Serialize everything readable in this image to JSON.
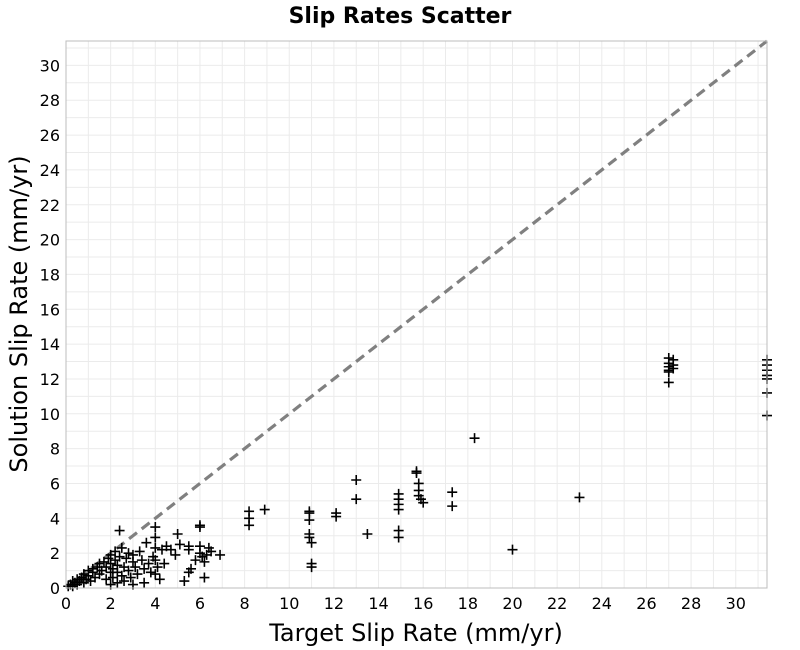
{
  "chart_data": {
    "type": "scatter",
    "title": "Slip Rates Scatter",
    "xlabel": "Target Slip Rate (mm/yr)",
    "ylabel": "Solution Slip Rate (mm/yr)",
    "xlim": [
      0,
      31.4
    ],
    "ylim": [
      0,
      31.4
    ],
    "xticks": [
      0,
      2,
      4,
      6,
      8,
      10,
      12,
      14,
      16,
      18,
      20,
      22,
      24,
      26,
      28,
      30
    ],
    "yticks": [
      0,
      2,
      4,
      6,
      8,
      10,
      12,
      14,
      16,
      18,
      20,
      22,
      24,
      26,
      28,
      30
    ],
    "grid": true,
    "marker": "plus",
    "marker_color": "#000000",
    "reference_line": {
      "style": "dashed",
      "color": "#808080",
      "from": [
        0,
        0
      ],
      "to": [
        31.4,
        31.4
      ]
    },
    "points": [
      [
        0.1,
        0.1
      ],
      [
        0.2,
        0.2
      ],
      [
        0.3,
        0.1
      ],
      [
        0.3,
        0.4
      ],
      [
        0.4,
        0.3
      ],
      [
        0.5,
        0.2
      ],
      [
        0.5,
        0.5
      ],
      [
        0.6,
        0.4
      ],
      [
        0.7,
        0.6
      ],
      [
        0.8,
        0.3
      ],
      [
        0.8,
        0.8
      ],
      [
        0.9,
        0.5
      ],
      [
        1.0,
        1.0
      ],
      [
        1.0,
        0.7
      ],
      [
        1.1,
        0.4
      ],
      [
        1.2,
        0.9
      ],
      [
        1.2,
        1.1
      ],
      [
        1.3,
        0.6
      ],
      [
        1.4,
        1.2
      ],
      [
        1.5,
        0.8
      ],
      [
        1.5,
        1.4
      ],
      [
        1.6,
        1.0
      ],
      [
        1.7,
        1.5
      ],
      [
        1.8,
        0.5
      ],
      [
        1.8,
        1.2
      ],
      [
        1.9,
        1.7
      ],
      [
        2.0,
        0.2
      ],
      [
        2.0,
        0.9
      ],
      [
        2.0,
        1.4
      ],
      [
        2.0,
        1.9
      ],
      [
        2.1,
        0.6
      ],
      [
        2.1,
        1.1
      ],
      [
        2.2,
        1.6
      ],
      [
        2.2,
        2.1
      ],
      [
        2.3,
        0.3
      ],
      [
        2.3,
        0.9
      ],
      [
        2.3,
        1.3
      ],
      [
        2.4,
        3.3
      ],
      [
        2.4,
        1.8
      ],
      [
        2.5,
        0.7
      ],
      [
        2.5,
        2.3
      ],
      [
        2.6,
        1.2
      ],
      [
        2.6,
        0.4
      ],
      [
        2.7,
        1.7
      ],
      [
        2.8,
        1.0
      ],
      [
        2.8,
        2.0
      ],
      [
        2.9,
        0.6
      ],
      [
        3.0,
        1.5
      ],
      [
        3.0,
        0.2
      ],
      [
        3.0,
        1.9
      ],
      [
        3.1,
        1.2
      ],
      [
        3.2,
        0.8
      ],
      [
        3.3,
        2.1
      ],
      [
        3.4,
        1.6
      ],
      [
        3.5,
        0.3
      ],
      [
        3.5,
        1.1
      ],
      [
        3.6,
        2.6
      ],
      [
        3.7,
        1.4
      ],
      [
        3.8,
        0.9
      ],
      [
        3.9,
        1.8
      ],
      [
        4.0,
        3.5
      ],
      [
        4.0,
        2.9
      ],
      [
        4.0,
        2.3
      ],
      [
        4.0,
        1.6
      ],
      [
        4.0,
        0.8
      ],
      [
        4.1,
        1.2
      ],
      [
        4.2,
        0.5
      ],
      [
        4.3,
        2.2
      ],
      [
        4.4,
        1.4
      ],
      [
        4.5,
        2.4
      ],
      [
        4.7,
        2.2
      ],
      [
        4.9,
        1.9
      ],
      [
        5.0,
        3.1
      ],
      [
        5.1,
        2.5
      ],
      [
        5.3,
        0.4
      ],
      [
        5.5,
        2.4
      ],
      [
        5.5,
        2.2
      ],
      [
        5.5,
        0.9
      ],
      [
        5.6,
        1.1
      ],
      [
        5.8,
        1.6
      ],
      [
        6.0,
        3.6
      ],
      [
        6.0,
        3.5
      ],
      [
        6.0,
        2.4
      ],
      [
        6.0,
        2.0
      ],
      [
        6.1,
        1.8
      ],
      [
        6.2,
        1.5
      ],
      [
        6.2,
        0.6
      ],
      [
        6.3,
        1.9
      ],
      [
        6.4,
        2.3
      ],
      [
        6.5,
        2.1
      ],
      [
        6.9,
        1.9
      ],
      [
        8.2,
        4.4
      ],
      [
        8.2,
        4.0
      ],
      [
        8.2,
        3.6
      ],
      [
        8.9,
        4.5
      ],
      [
        10.9,
        4.4
      ],
      [
        10.9,
        4.3
      ],
      [
        10.9,
        3.9
      ],
      [
        10.9,
        3.1
      ],
      [
        10.9,
        2.9
      ],
      [
        11.0,
        2.6
      ],
      [
        11.0,
        1.4
      ],
      [
        11.0,
        1.2
      ],
      [
        12.1,
        4.3
      ],
      [
        12.1,
        4.1
      ],
      [
        13.0,
        6.2
      ],
      [
        13.0,
        5.1
      ],
      [
        13.5,
        3.1
      ],
      [
        14.9,
        5.4
      ],
      [
        14.9,
        5.1
      ],
      [
        14.9,
        4.8
      ],
      [
        14.9,
        4.5
      ],
      [
        14.9,
        3.3
      ],
      [
        14.9,
        2.9
      ],
      [
        15.7,
        6.7
      ],
      [
        15.7,
        6.6
      ],
      [
        15.8,
        6.0
      ],
      [
        15.8,
        5.6
      ],
      [
        15.8,
        5.3
      ],
      [
        15.9,
        5.1
      ],
      [
        16.0,
        4.9
      ],
      [
        17.3,
        5.5
      ],
      [
        17.3,
        4.7
      ],
      [
        18.3,
        8.6
      ],
      [
        20.0,
        2.2
      ],
      [
        23.0,
        5.2
      ],
      [
        27.0,
        13.2
      ],
      [
        27.0,
        12.9
      ],
      [
        27.0,
        12.7
      ],
      [
        27.0,
        12.5
      ],
      [
        27.0,
        12.4
      ],
      [
        27.0,
        11.8
      ],
      [
        27.2,
        13.1
      ],
      [
        27.2,
        12.8
      ],
      [
        27.2,
        12.6
      ],
      [
        31.4,
        13.1
      ],
      [
        31.4,
        12.8
      ],
      [
        31.4,
        12.5
      ],
      [
        31.4,
        12.2
      ],
      [
        31.4,
        12.0
      ],
      [
        31.4,
        11.2
      ],
      [
        31.4,
        9.9
      ]
    ]
  }
}
